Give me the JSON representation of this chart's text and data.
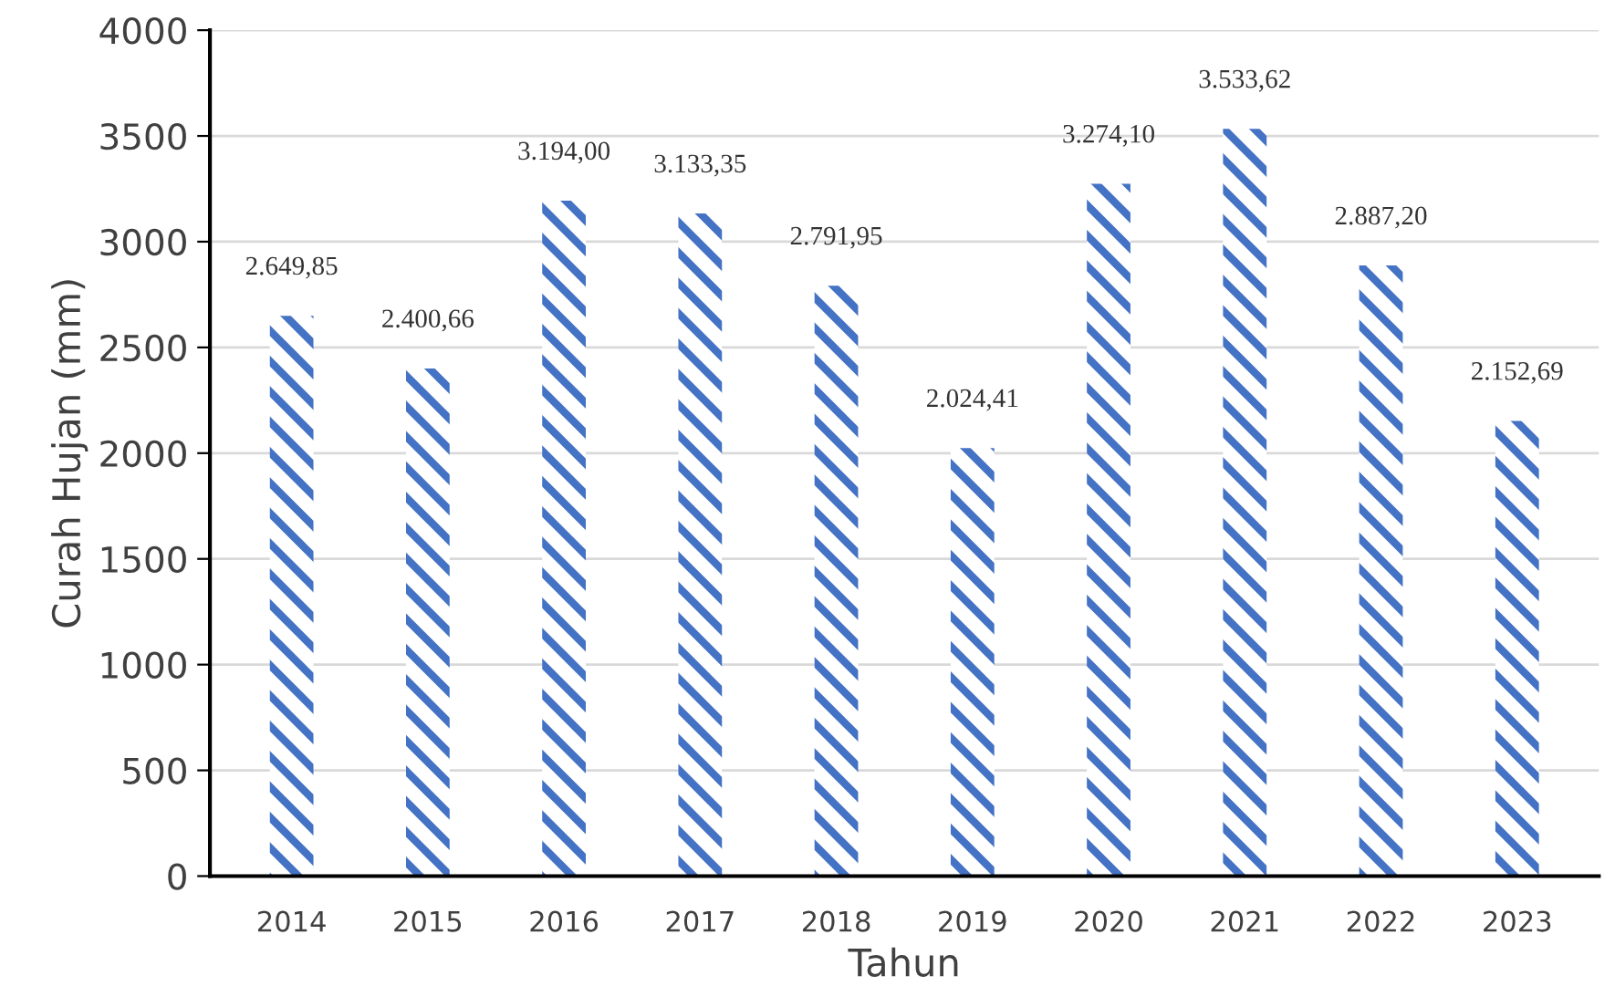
{
  "chart_data": {
    "type": "bar",
    "xlabel": "Tahun",
    "ylabel": "Curah Hujan (mm)",
    "categories": [
      "2014",
      "2015",
      "2016",
      "2017",
      "2018",
      "2019",
      "2020",
      "2021",
      "2022",
      "2023"
    ],
    "values": [
      2649.85,
      2400.66,
      3194.0,
      3133.35,
      2791.95,
      2024.41,
      3274.1,
      3533.62,
      2887.2,
      2152.69
    ],
    "value_labels": [
      "2.649,85",
      "2.400,66",
      "3.194,00",
      "3.133,35",
      "2.791,95",
      "2.024,41",
      "3.274,10",
      "3.533,62",
      "2.887,20",
      "2.152,69"
    ],
    "color": "#4472c4",
    "ylim": [
      0,
      4000
    ],
    "yticks": [
      0,
      500,
      1000,
      1500,
      2000,
      2500,
      3000,
      3500,
      4000
    ],
    "grid": "y",
    "legend": false
  }
}
